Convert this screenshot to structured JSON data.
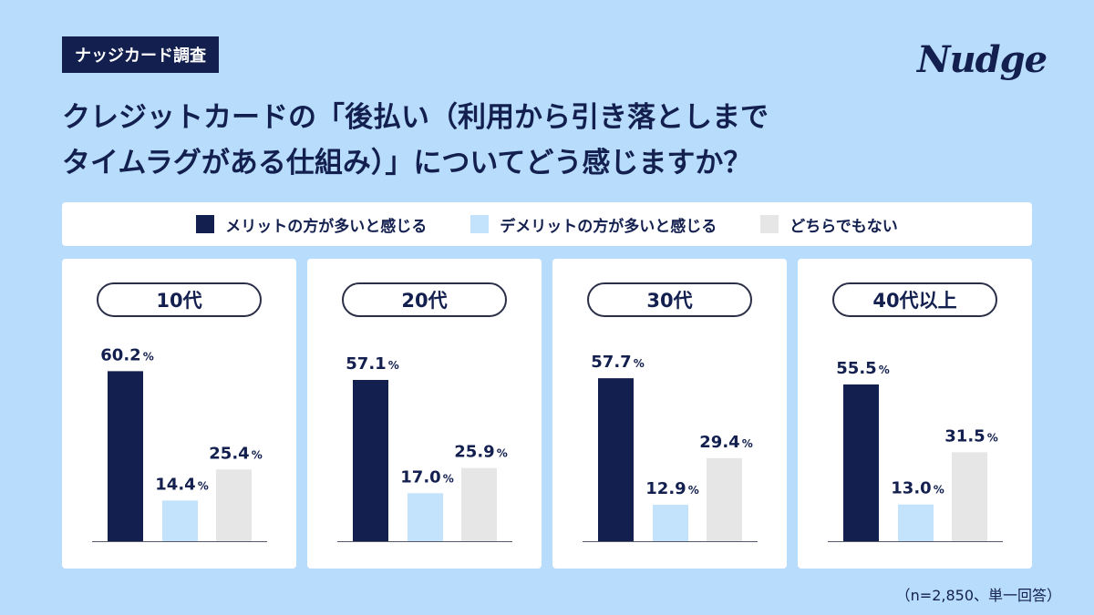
{
  "badge": "ナッジカード調査",
  "brand": "Nudge",
  "title": {
    "line1": "クレジットカードの「後払い（利用から引き落としまで",
    "line2": "タイムラグがある仕組み）」についてどう感じますか？"
  },
  "colors": {
    "merit": "#13204f",
    "demerit": "#c3e2fb",
    "neither": "#e6e6e6"
  },
  "legend": {
    "merit": "メリットの方が多いと感じる",
    "demerit": "デメリットの方が多いと感じる",
    "neither": "どちらでもない"
  },
  "chart_data": {
    "type": "bar",
    "title": "クレジットカードの「後払い（利用から引き落としまでタイムラグがある仕組み）」についてどう感じますか？",
    "unit": "%",
    "ylim": [
      0,
      100
    ],
    "series_names": [
      "メリットの方が多いと感じる",
      "デメリットの方が多いと感じる",
      "どちらでもない"
    ],
    "groups": [
      {
        "label": "10代",
        "values": [
          60.2,
          14.4,
          25.4
        ]
      },
      {
        "label": "20代",
        "values": [
          57.1,
          17.0,
          25.9
        ]
      },
      {
        "label": "30代",
        "values": [
          57.7,
          12.9,
          29.4
        ]
      },
      {
        "label": "40代以上",
        "values": [
          55.5,
          13.0,
          31.5
        ]
      }
    ]
  },
  "footnote": "（n=2,850、単一回答）"
}
